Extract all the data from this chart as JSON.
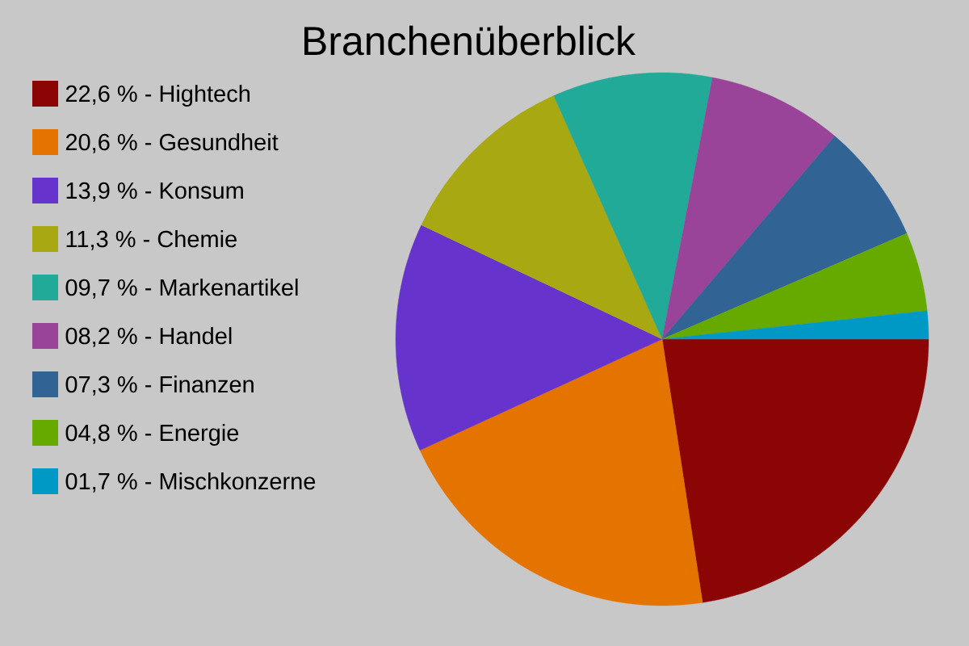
{
  "chart_data": {
    "type": "pie",
    "title": "Branchenüberblick",
    "categories": [
      "22,6 % - Hightech",
      "20,6 % - Gesundheit",
      "13,9 % - Konsum",
      "11,3 % - Chemie",
      "09,7 % - Markenartikel",
      "08,2 % - Handel",
      "07,3 % - Finanzen",
      "04,8 % - Energie",
      "01,7 % - Mischkonzerne"
    ],
    "values": [
      22.6,
      20.6,
      13.9,
      11.3,
      9.7,
      8.2,
      7.3,
      4.8,
      1.7
    ],
    "colors": [
      "#8b0505",
      "#e57300",
      "#6633cc",
      "#a8a812",
      "#22aa99",
      "#994499",
      "#316395",
      "#66aa00",
      "#0099c6"
    ],
    "legend": "top left"
  }
}
